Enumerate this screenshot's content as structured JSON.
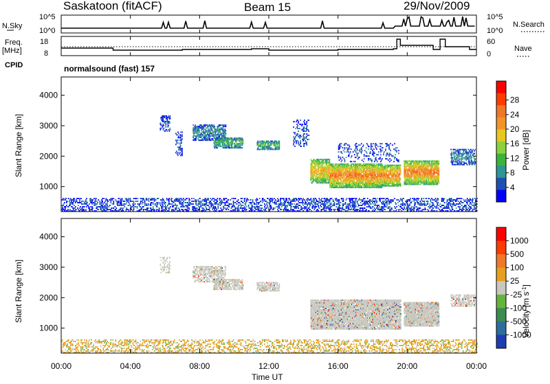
{
  "header": {
    "title": "Saskatoon (fitACF)",
    "beam": "Beam 15",
    "date": "29/Nov/2009"
  },
  "panels": {
    "nsky": {
      "label": "N.Sky",
      "ticks": [
        "10^5",
        "10^0"
      ]
    },
    "nsearch": {
      "label": "N.Search",
      "ticks": [
        "10^5",
        "10^0"
      ]
    },
    "freq": {
      "label_top": "Freq.",
      "label_bottom": "[MHz]",
      "ticks": [
        "18",
        "8"
      ]
    },
    "nave": {
      "label": "Nave",
      "ticks": [
        "60",
        "0"
      ]
    },
    "cpid": {
      "label": "CPID",
      "value": "normalsound (fast) 157"
    }
  },
  "chart_data": [
    {
      "type": "heatmap",
      "name": "power",
      "ylabel": "Slant Range [km]",
      "xlabel": "Time UT",
      "x_ticks": [
        "00:00",
        "04:00",
        "08:00",
        "12:00",
        "16:00",
        "20:00",
        "00:00"
      ],
      "xlim_hours": [
        0,
        24
      ],
      "y_ticks": [
        1000,
        2000,
        3000,
        4000
      ],
      "ylim": [
        180,
        4600
      ],
      "colorbar": {
        "label": "Power [dB]",
        "ticks": [
          "4",
          "8",
          "12",
          "16",
          "20",
          "24",
          "28"
        ],
        "colors": [
          "#0000ff",
          "#1e50b4",
          "#2d9696",
          "#3cb43c",
          "#8cd23c",
          "#e6c81e",
          "#f09628",
          "#f07828",
          "#ff3c00",
          "#ff0000"
        ]
      },
      "echo_regions": [
        {
          "t": [
            5.7,
            6.3
          ],
          "r": [
            2800,
            3300
          ],
          "level": 1,
          "density": 0.4
        },
        {
          "t": [
            6.6,
            7.0
          ],
          "r": [
            2000,
            2800
          ],
          "level": 1,
          "density": 0.35
        },
        {
          "t": [
            7.6,
            9.5
          ],
          "r": [
            2500,
            3000
          ],
          "level": 2,
          "density": 0.6
        },
        {
          "t": [
            8.8,
            10.5
          ],
          "r": [
            2250,
            2600
          ],
          "level": 3,
          "density": 0.7
        },
        {
          "t": [
            11.3,
            12.6
          ],
          "r": [
            2200,
            2500
          ],
          "level": 3,
          "density": 0.7
        },
        {
          "t": [
            13.4,
            14.3
          ],
          "r": [
            2300,
            3200
          ],
          "level": 1,
          "density": 0.25
        },
        {
          "t": [
            14.4,
            15.5
          ],
          "r": [
            1100,
            1900
          ],
          "level": 6,
          "density": 0.8
        },
        {
          "t": [
            15.5,
            18.5
          ],
          "r": [
            950,
            1750
          ],
          "level": 7,
          "density": 0.85
        },
        {
          "t": [
            18.5,
            19.6
          ],
          "r": [
            1000,
            1700
          ],
          "level": 7,
          "density": 0.8
        },
        {
          "t": [
            19.8,
            21.8
          ],
          "r": [
            1050,
            1850
          ],
          "level": 7,
          "density": 0.8
        },
        {
          "t": [
            16.0,
            19.5
          ],
          "r": [
            1800,
            2400
          ],
          "level": 1,
          "density": 0.2
        },
        {
          "t": [
            22.5,
            23.9
          ],
          "r": [
            1700,
            2200
          ],
          "level": 2,
          "density": 0.5
        },
        {
          "t": [
            0,
            24
          ],
          "r": [
            180,
            620
          ],
          "level": 1,
          "density": 0.35
        }
      ]
    },
    {
      "type": "heatmap",
      "name": "velocity",
      "ylabel": "Slant Range [km]",
      "xlabel": "Time UT",
      "x_ticks": [
        "00:00",
        "04:00",
        "08:00",
        "12:00",
        "16:00",
        "20:00",
        "00:00"
      ],
      "xlim_hours": [
        0,
        24
      ],
      "y_ticks": [
        1000,
        2000,
        3000,
        4000
      ],
      "ylim": [
        180,
        4600
      ],
      "colorbar": {
        "label": "Velocity [m s",
        "label_sup": "-1",
        "label_end": "]",
        "ticks": [
          "1000",
          "500",
          "100",
          "25",
          "-25",
          "-100",
          "-500",
          "-1000"
        ],
        "colors": [
          "#1e3cb4",
          "#2d6e9b",
          "#3c8c50",
          "#64b43c",
          "#c8c8c0",
          "#e6a01e",
          "#f07828",
          "#ff3c00",
          "#ff0000"
        ]
      },
      "echo_regions": [
        {
          "t": [
            5.7,
            6.3
          ],
          "r": [
            2800,
            3300
          ],
          "density": 0.3
        },
        {
          "t": [
            7.6,
            9.5
          ],
          "r": [
            2500,
            3000
          ],
          "density": 0.5
        },
        {
          "t": [
            8.8,
            10.5
          ],
          "r": [
            2250,
            2600
          ],
          "density": 0.65
        },
        {
          "t": [
            11.3,
            12.6
          ],
          "r": [
            2200,
            2500
          ],
          "density": 0.65
        },
        {
          "t": [
            14.4,
            19.6
          ],
          "r": [
            950,
            1900
          ],
          "density": 0.85
        },
        {
          "t": [
            19.8,
            21.8
          ],
          "r": [
            1050,
            1850
          ],
          "density": 0.85
        },
        {
          "t": [
            22.5,
            23.9
          ],
          "r": [
            1700,
            2100
          ],
          "density": 0.5
        },
        {
          "t": [
            0,
            24
          ],
          "r": [
            180,
            620
          ],
          "density": 0.3,
          "ground": true
        }
      ]
    }
  ]
}
